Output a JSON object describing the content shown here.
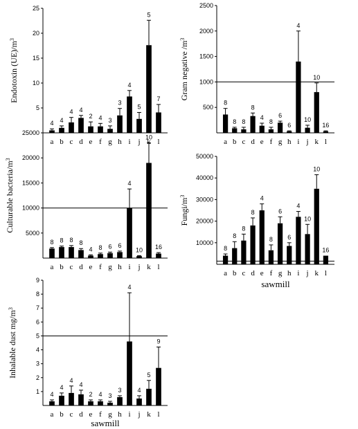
{
  "chart_data": [
    {
      "type": "bar",
      "ylabel": "Endotoxin (UE)/m3",
      "xlabel": "",
      "ylim": [
        0,
        25
      ],
      "yticks": [
        5,
        10,
        15,
        20,
        25
      ],
      "categories": [
        "a",
        "b",
        "c",
        "d",
        "e",
        "f",
        "g",
        "h",
        "i",
        "j",
        "k",
        "l"
      ],
      "values": [
        0.5,
        1.0,
        2.1,
        3.0,
        1.3,
        1.3,
        0.8,
        3.5,
        7.3,
        2.8,
        17.6,
        4.1
      ],
      "errors": [
        0.3,
        0.4,
        1.0,
        0.5,
        0.9,
        0.6,
        0.6,
        1.4,
        1.2,
        1.3,
        5.0,
        1.6
      ],
      "annotations": [
        "4",
        "4",
        "4",
        "4",
        "2",
        "4",
        "3",
        "3",
        "4",
        "5",
        "5",
        "7"
      ],
      "reference_line": null
    },
    {
      "type": "bar",
      "ylabel": "Gram negative /m3",
      "xlabel": "",
      "ylim": [
        0,
        2500
      ],
      "yticks": [
        500,
        1000,
        1500,
        2000,
        2500
      ],
      "categories": [
        "a",
        "b",
        "c",
        "d",
        "e",
        "f",
        "g",
        "h",
        "i",
        "j",
        "k",
        "l"
      ],
      "values": [
        360,
        90,
        70,
        330,
        140,
        70,
        200,
        30,
        1400,
        100,
        800,
        30
      ],
      "errors": [
        120,
        20,
        40,
        60,
        50,
        40,
        30,
        10,
        600,
        50,
        180,
        10
      ],
      "annotations": [
        "8",
        "8",
        "8",
        "8",
        "4",
        "8",
        "6",
        "6",
        "4",
        "10",
        "10",
        "16"
      ],
      "reference_line": 1000
    },
    {
      "type": "bar",
      "ylabel": "Culturable bacteria/m3",
      "xlabel": "",
      "ylim": [
        0,
        25000
      ],
      "yticks": [
        5000,
        10000,
        15000,
        20000,
        25000
      ],
      "categories": [
        "a",
        "b",
        "c",
        "d",
        "e",
        "f",
        "g",
        "h",
        "i",
        "j",
        "k",
        "l"
      ],
      "values": [
        1900,
        2200,
        2200,
        1600,
        500,
        800,
        1000,
        1200,
        10000,
        400,
        19000,
        900
      ],
      "errors": [
        200,
        200,
        300,
        300,
        150,
        200,
        200,
        200,
        3800,
        100,
        4000,
        200
      ],
      "annotations": [
        "8",
        "8",
        "8",
        "8",
        "4",
        "8",
        "6",
        "6",
        "4",
        "10",
        "10",
        "16"
      ],
      "reference_line": 10000
    },
    {
      "type": "bar",
      "ylabel": "Fungi/m3",
      "xlabel": "sawmill",
      "ylim": [
        0,
        50000
      ],
      "yticks": [
        10000,
        20000,
        30000,
        40000,
        50000
      ],
      "categories": [
        "a",
        "b",
        "c",
        "d",
        "e",
        "f",
        "g",
        "h",
        "i",
        "j",
        "k",
        "l"
      ],
      "values": [
        4000,
        7500,
        11000,
        18000,
        25000,
        6500,
        19000,
        8500,
        22000,
        14000,
        35000,
        4000
      ],
      "errors": [
        800,
        3000,
        3000,
        3500,
        3000,
        2500,
        3000,
        1500,
        2500,
        4500,
        6500,
        0
      ],
      "annotations": [
        "8",
        "8",
        "8",
        "8",
        "4",
        "8",
        "6",
        "6",
        "4",
        "10",
        "10",
        "16"
      ],
      "reference_line": 1500
    },
    {
      "type": "bar",
      "ylabel": "Inhalable dust mg/m3",
      "xlabel": "sawmill",
      "ylim": [
        0,
        9
      ],
      "yticks": [
        1,
        2,
        3,
        4,
        5,
        6,
        7,
        8,
        9
      ],
      "categories": [
        "a",
        "b",
        "c",
        "d",
        "e",
        "f",
        "g",
        "h",
        "i",
        "j",
        "k",
        "l"
      ],
      "values": [
        0.3,
        0.7,
        0.9,
        0.8,
        0.3,
        0.3,
        0.2,
        0.6,
        4.6,
        0.5,
        1.2,
        2.7
      ],
      "errors": [
        0.1,
        0.2,
        0.5,
        0.3,
        0.1,
        0.1,
        0.1,
        0.1,
        3.5,
        0.2,
        0.6,
        1.5
      ],
      "annotations": [
        "4",
        "4",
        "4",
        "4",
        "2",
        "4",
        "3",
        "3",
        "4",
        "4",
        "5",
        "9"
      ],
      "reference_line": 5
    }
  ]
}
